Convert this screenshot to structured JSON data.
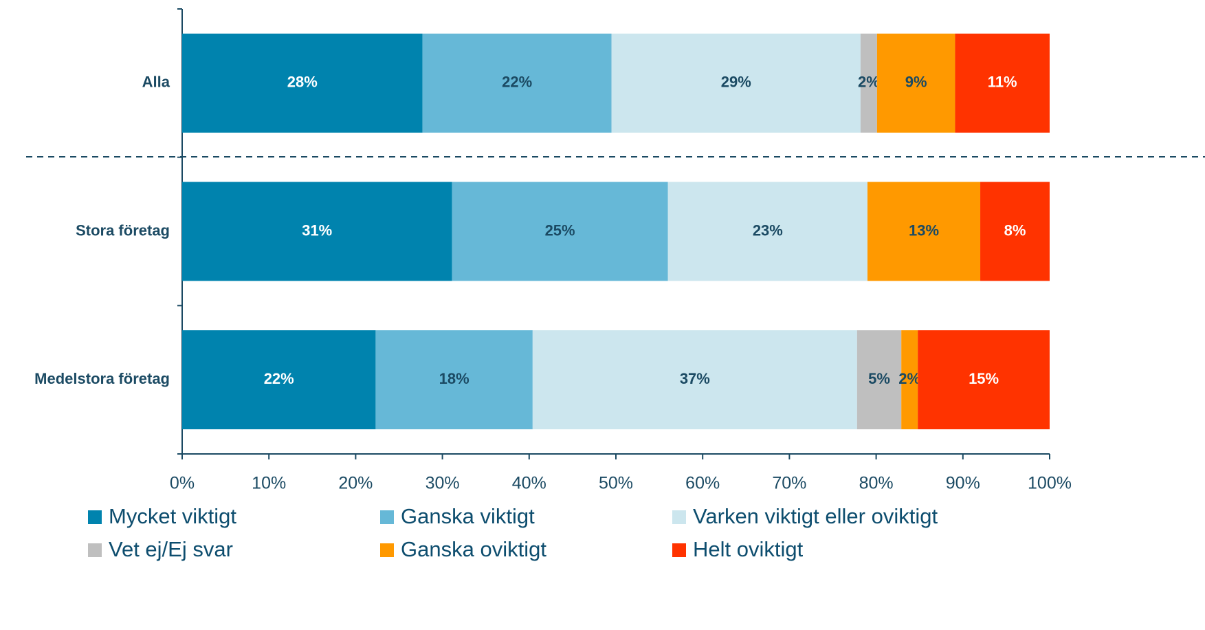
{
  "chart_data": {
    "type": "bar",
    "orientation": "horizontal",
    "stacked": true,
    "categories": [
      "Alla",
      "Stora företag",
      "Medelstora företag"
    ],
    "series": [
      {
        "name": "Mycket viktigt",
        "color": "#0083ae",
        "label_color": "#ffffff",
        "values": [
          27.7,
          31.1,
          22.3
        ],
        "value_labels": [
          "28%",
          "31%",
          "22%"
        ]
      },
      {
        "name": "Ganska viktigt",
        "color": "#66b8d7",
        "label_color": "#1b4a63",
        "values": [
          21.8,
          24.9,
          18.1
        ],
        "value_labels": [
          "22%",
          "25%",
          "18%"
        ]
      },
      {
        "name": "Varken viktigt eller oviktigt",
        "color": "#cce6ee",
        "label_color": "#1b4a63",
        "values": [
          28.7,
          23.0,
          37.4
        ],
        "value_labels": [
          "29%",
          "23%",
          "37%"
        ]
      },
      {
        "name": "Vet ej/Ej svar",
        "color": "#bfbfbf",
        "label_color": "#1b4a63",
        "values": [
          1.9,
          null,
          5.1
        ],
        "value_labels": [
          "2%",
          null,
          "5%"
        ]
      },
      {
        "name": "Ganska oviktigt",
        "color": "#ff9900",
        "label_color": "#1b4a63",
        "values": [
          9.0,
          13.0,
          1.9
        ],
        "value_labels": [
          "9%",
          "13%",
          "2%"
        ]
      },
      {
        "name": "Helt oviktigt",
        "color": "#ff3300",
        "label_color": "#ffffff",
        "values": [
          10.9,
          8.0,
          15.2
        ],
        "value_labels": [
          "11%",
          "8%",
          "15%"
        ]
      }
    ],
    "xlim": [
      0,
      100
    ],
    "xticks": [
      {
        "value": 0,
        "label": "0%"
      },
      {
        "value": 10,
        "label": "10%"
      },
      {
        "value": 20,
        "label": "20%"
      },
      {
        "value": 30,
        "label": "30%"
      },
      {
        "value": 40,
        "label": "40%"
      },
      {
        "value": 50,
        "label": "50%"
      },
      {
        "value": 60,
        "label": "60%"
      },
      {
        "value": 70,
        "label": "70%"
      },
      {
        "value": 80,
        "label": "80%"
      },
      {
        "value": 90,
        "label": "90%"
      },
      {
        "value": 100,
        "label": "100%"
      }
    ],
    "legend": "bottom"
  }
}
